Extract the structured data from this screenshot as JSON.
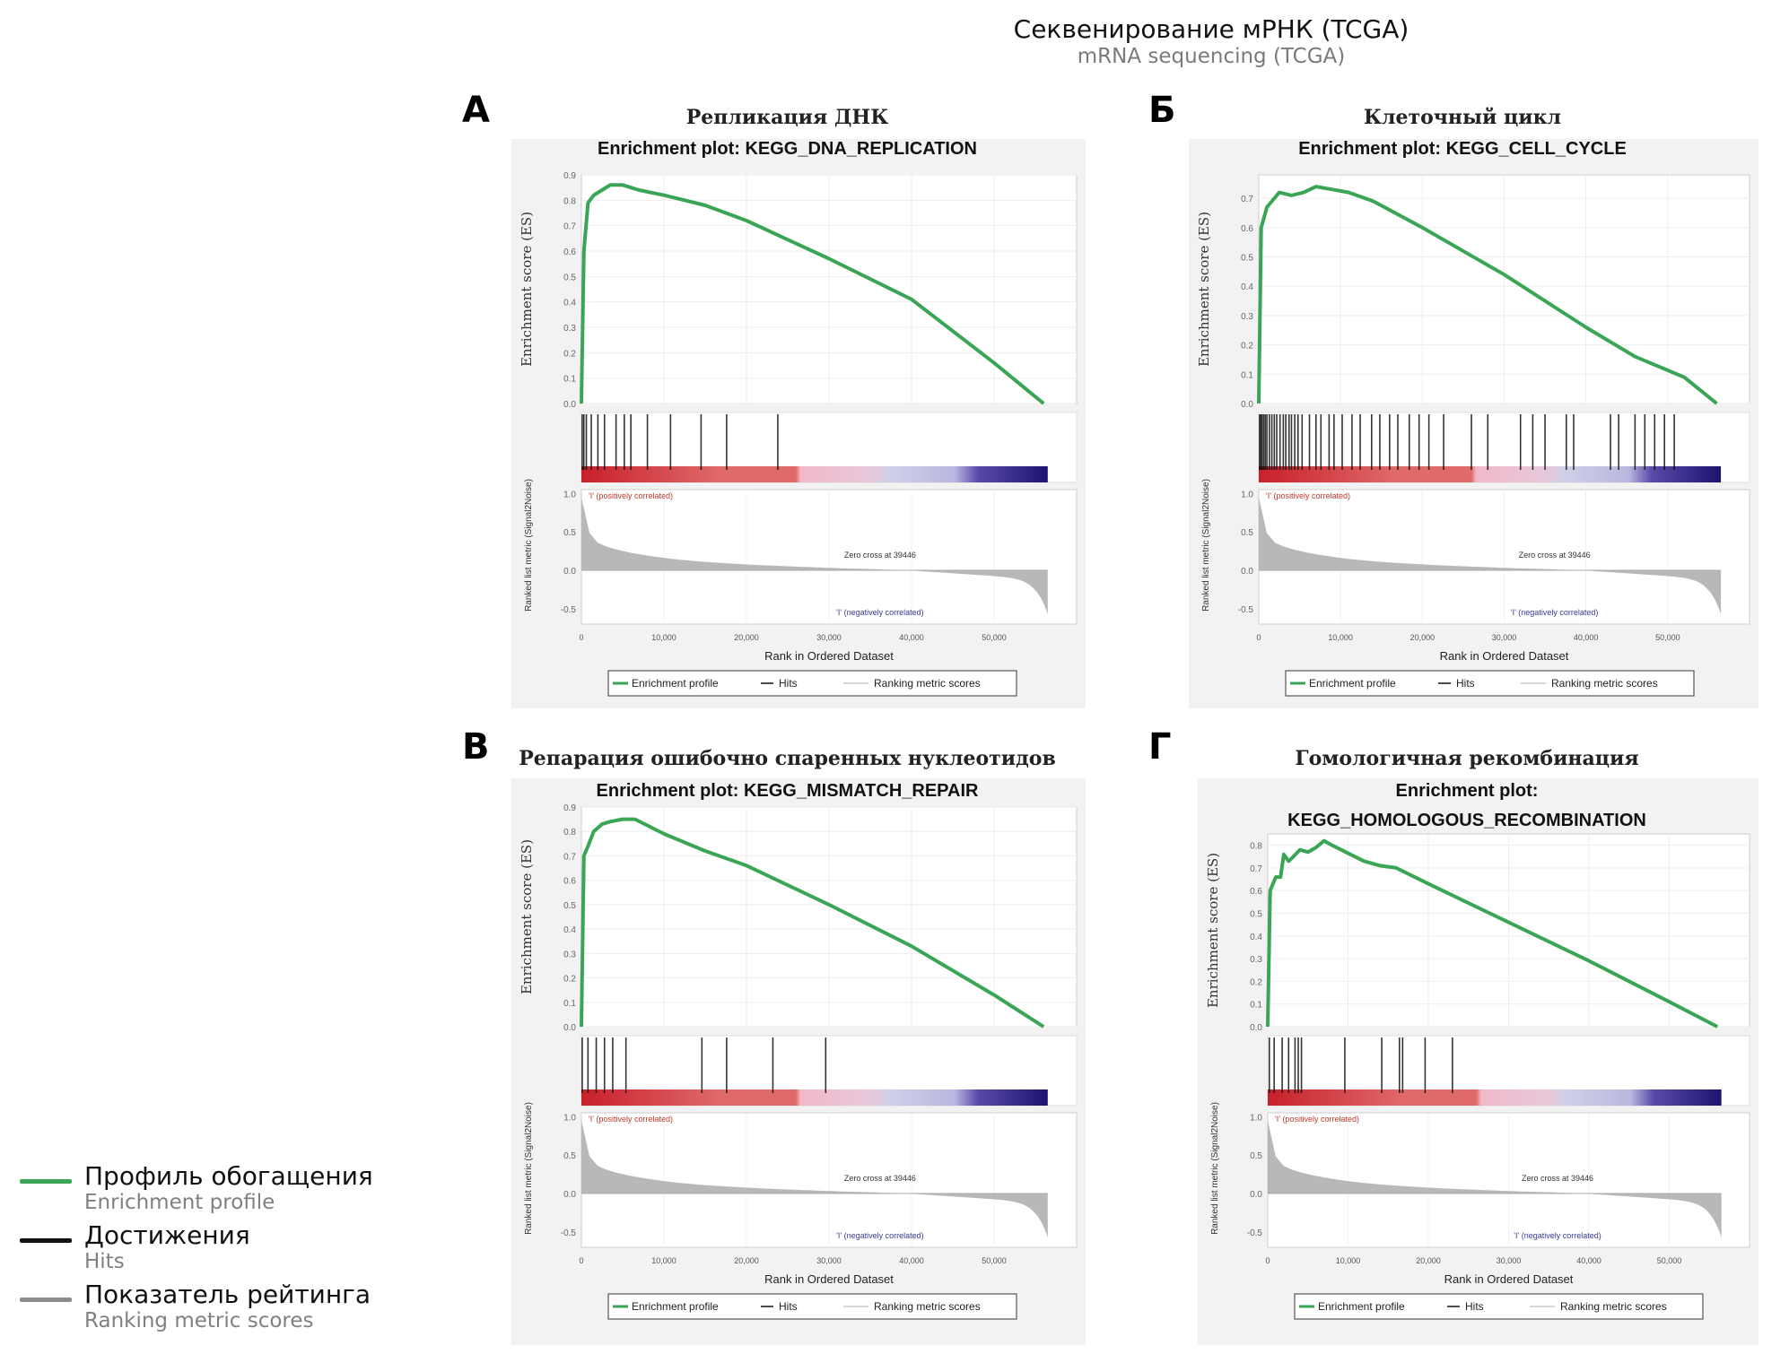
{
  "figure": {
    "title_ru": "Секвенирование мРНК (TCGA)",
    "title_en": "mRNA sequencing (TCGA)"
  },
  "legend": [
    {
      "ru": "Профиль обогащения",
      "en": "Enrichment profile",
      "color": "#3aa655"
    },
    {
      "ru": "Достижения",
      "en": "Hits",
      "color": "#111111"
    },
    {
      "ru": "Показатель рейтинга",
      "en": "Ranking metric scores",
      "color": "#8c8c8c"
    }
  ],
  "colors": {
    "enrichment_line": "#3aa655",
    "hits": "#111111",
    "ranking_fill": "#b8b8b8",
    "positive_label": "#c0392b",
    "negative_label": "#3a3a9a",
    "panel_bg": "#f2f2f2"
  },
  "chart_data": [
    {
      "type": "line",
      "panel_letter": "А",
      "title_ru": "Репликация ДНК",
      "title": "Enrichment plot: KEGG_DNA_REPLICATION",
      "ylabel": "Enrichment score (ES)",
      "ylim": [
        0.0,
        0.9
      ],
      "yticks": [
        "0.9",
        "0.8",
        "0.7",
        "0.6",
        "0.5",
        "0.4",
        "0.3",
        "0.2",
        "0.1",
        "0.0"
      ],
      "x": [
        0,
        300,
        800,
        1500,
        2500,
        3500,
        5000,
        7000,
        10000,
        15000,
        20000,
        30000,
        40000,
        50000,
        56000
      ],
      "es": [
        0.0,
        0.6,
        0.79,
        0.82,
        0.84,
        0.86,
        0.86,
        0.84,
        0.82,
        0.78,
        0.72,
        0.57,
        0.41,
        0.16,
        0.0
      ],
      "hits": [
        100,
        300,
        600,
        1200,
        2000,
        2800,
        4200,
        5200,
        6000,
        8000,
        10800,
        14500,
        17600,
        23800
      ],
      "ranking_metric": {
        "ylabel": "Ranked list metric (Signal2Noise)",
        "ylim": [
          -0.7,
          1.05
        ],
        "yticks": [
          "1.0",
          "0.5",
          "0.0",
          "-0.5"
        ],
        "zero_cross": "Zero cross at 39446",
        "pos_label": "'I' (positively correlated)",
        "neg_label": "'I' (negatively correlated)"
      },
      "xlabel": "Rank in Ordered Dataset",
      "xticks": [
        "0",
        "10,000",
        "20,000",
        "30,000",
        "40,000",
        "50,000"
      ],
      "xlim": [
        0,
        60000
      ],
      "legend_items": [
        "Enrichment profile",
        "Hits",
        "Ranking metric scores"
      ]
    },
    {
      "type": "line",
      "panel_letter": "Б",
      "title_ru": "Клеточный цикл",
      "title": "Enrichment plot: KEGG_CELL_CYCLE",
      "ylabel": "Enrichment score (ES)",
      "ylim": [
        0.0,
        0.78
      ],
      "yticks": [
        "0.7",
        "0.6",
        "0.5",
        "0.4",
        "0.3",
        "0.2",
        "0.1",
        "0.0"
      ],
      "x": [
        0,
        300,
        1000,
        2500,
        4000,
        5500,
        7000,
        9000,
        11000,
        14000,
        20000,
        30000,
        40000,
        46000,
        52000,
        56000
      ],
      "es": [
        0.0,
        0.6,
        0.67,
        0.72,
        0.71,
        0.72,
        0.74,
        0.73,
        0.72,
        0.69,
        0.6,
        0.44,
        0.26,
        0.16,
        0.09,
        0.0
      ],
      "hits": [
        100,
        250,
        400,
        600,
        800,
        1000,
        1300,
        1600,
        1900,
        2200,
        2600,
        3000,
        3300,
        3700,
        4000,
        4400,
        4800,
        5300,
        6200,
        7000,
        7600,
        8600,
        9200,
        10200,
        11400,
        12400,
        13800,
        14800,
        16000,
        17000,
        18400,
        19600,
        20800,
        22600,
        26000,
        28000,
        32000,
        33500,
        35000,
        37600,
        38500,
        43000,
        44000,
        46000,
        47200,
        48400,
        49600,
        50800
      ],
      "ranking_metric": {
        "ylabel": "Ranked list metric (Signal2Noise)",
        "ylim": [
          -0.7,
          1.05
        ],
        "yticks": [
          "1.0",
          "0.5",
          "0.0",
          "-0.5"
        ],
        "zero_cross": "Zero cross at 39446",
        "pos_label": "'I' (positively correlated)",
        "neg_label": "'I' (negatively correlated)"
      },
      "xlabel": "Rank in Ordered Dataset",
      "xticks": [
        "0",
        "10,000",
        "20,000",
        "30,000",
        "40,000",
        "50,000"
      ],
      "xlim": [
        0,
        60000
      ],
      "legend_items": [
        "Enrichment profile",
        "Hits",
        "Ranking metric scores"
      ]
    },
    {
      "type": "line",
      "panel_letter": "В",
      "title_ru": "Репарация ошибочно спаренных нуклеотидов",
      "title": "Enrichment plot: KEGG_MISMATCH_REPAIR",
      "ylabel": "Enrichment score (ES)",
      "ylim": [
        0.0,
        0.9
      ],
      "yticks": [
        "0.9",
        "0.8",
        "0.7",
        "0.6",
        "0.5",
        "0.4",
        "0.3",
        "0.2",
        "0.1",
        "0.0"
      ],
      "x": [
        0,
        300,
        800,
        1500,
        2500,
        3500,
        5000,
        6500,
        10000,
        15000,
        20000,
        30000,
        40000,
        50000,
        56000
      ],
      "es": [
        0.0,
        0.7,
        0.74,
        0.8,
        0.83,
        0.84,
        0.85,
        0.85,
        0.79,
        0.72,
        0.66,
        0.5,
        0.33,
        0.13,
        0.0
      ],
      "hits": [
        100,
        800,
        1800,
        2800,
        3800,
        5400,
        14600,
        17600,
        23200,
        29600
      ],
      "ranking_metric": {
        "ylabel": "Ranked list metric (Signal2Noise)",
        "ylim": [
          -0.7,
          1.05
        ],
        "yticks": [
          "1.0",
          "0.5",
          "0.0",
          "-0.5"
        ],
        "zero_cross": "Zero cross at 39446",
        "pos_label": "'I' (positively correlated)",
        "neg_label": "'I' (negatively correlated)"
      },
      "xlabel": "Rank in Ordered Dataset",
      "xticks": [
        "0",
        "10,000",
        "20,000",
        "30,000",
        "40,000",
        "50,000"
      ],
      "xlim": [
        0,
        60000
      ],
      "legend_items": [
        "Enrichment profile",
        "Hits",
        "Ranking metric scores"
      ]
    },
    {
      "type": "line",
      "panel_letter": "Г",
      "title_ru": "Гомологичная рекомбинация",
      "title": "Enrichment plot: KEGG_HOMOLOGOUS_RECOMBINATION",
      "ylabel": "Enrichment score (ES)",
      "ylim": [
        0.0,
        0.85
      ],
      "yticks": [
        "0.8",
        "0.7",
        "0.6",
        "0.5",
        "0.4",
        "0.3",
        "0.2",
        "0.1",
        "0.0"
      ],
      "x": [
        0,
        300,
        1000,
        1600,
        2000,
        2600,
        3200,
        4000,
        5000,
        6000,
        7000,
        8000,
        12000,
        14000,
        16000,
        20000,
        30000,
        40000,
        50000,
        56000
      ],
      "es": [
        0.0,
        0.6,
        0.66,
        0.66,
        0.76,
        0.73,
        0.75,
        0.78,
        0.77,
        0.79,
        0.82,
        0.8,
        0.73,
        0.71,
        0.7,
        0.63,
        0.46,
        0.29,
        0.11,
        0.0
      ],
      "hits": [
        200,
        800,
        1800,
        2600,
        3400,
        3800,
        4200,
        9600,
        14200,
        16400,
        16800,
        19600,
        23000
      ],
      "ranking_metric": {
        "ylabel": "Ranked list metric (Signal2Noise)",
        "ylim": [
          -0.7,
          1.05
        ],
        "yticks": [
          "1.0",
          "0.5",
          "0.0",
          "-0.5"
        ],
        "zero_cross": "Zero cross at 39446",
        "pos_label": "'I' (positively correlated)",
        "neg_label": "'I' (negatively correlated)"
      },
      "xlabel": "Rank in Ordered Dataset",
      "xticks": [
        "0",
        "10,000",
        "20,000",
        "30,000",
        "40,000",
        "50,000"
      ],
      "xlim": [
        0,
        60000
      ],
      "legend_items": [
        "Enrichment profile",
        "Hits",
        "Ranking metric scores"
      ]
    }
  ]
}
